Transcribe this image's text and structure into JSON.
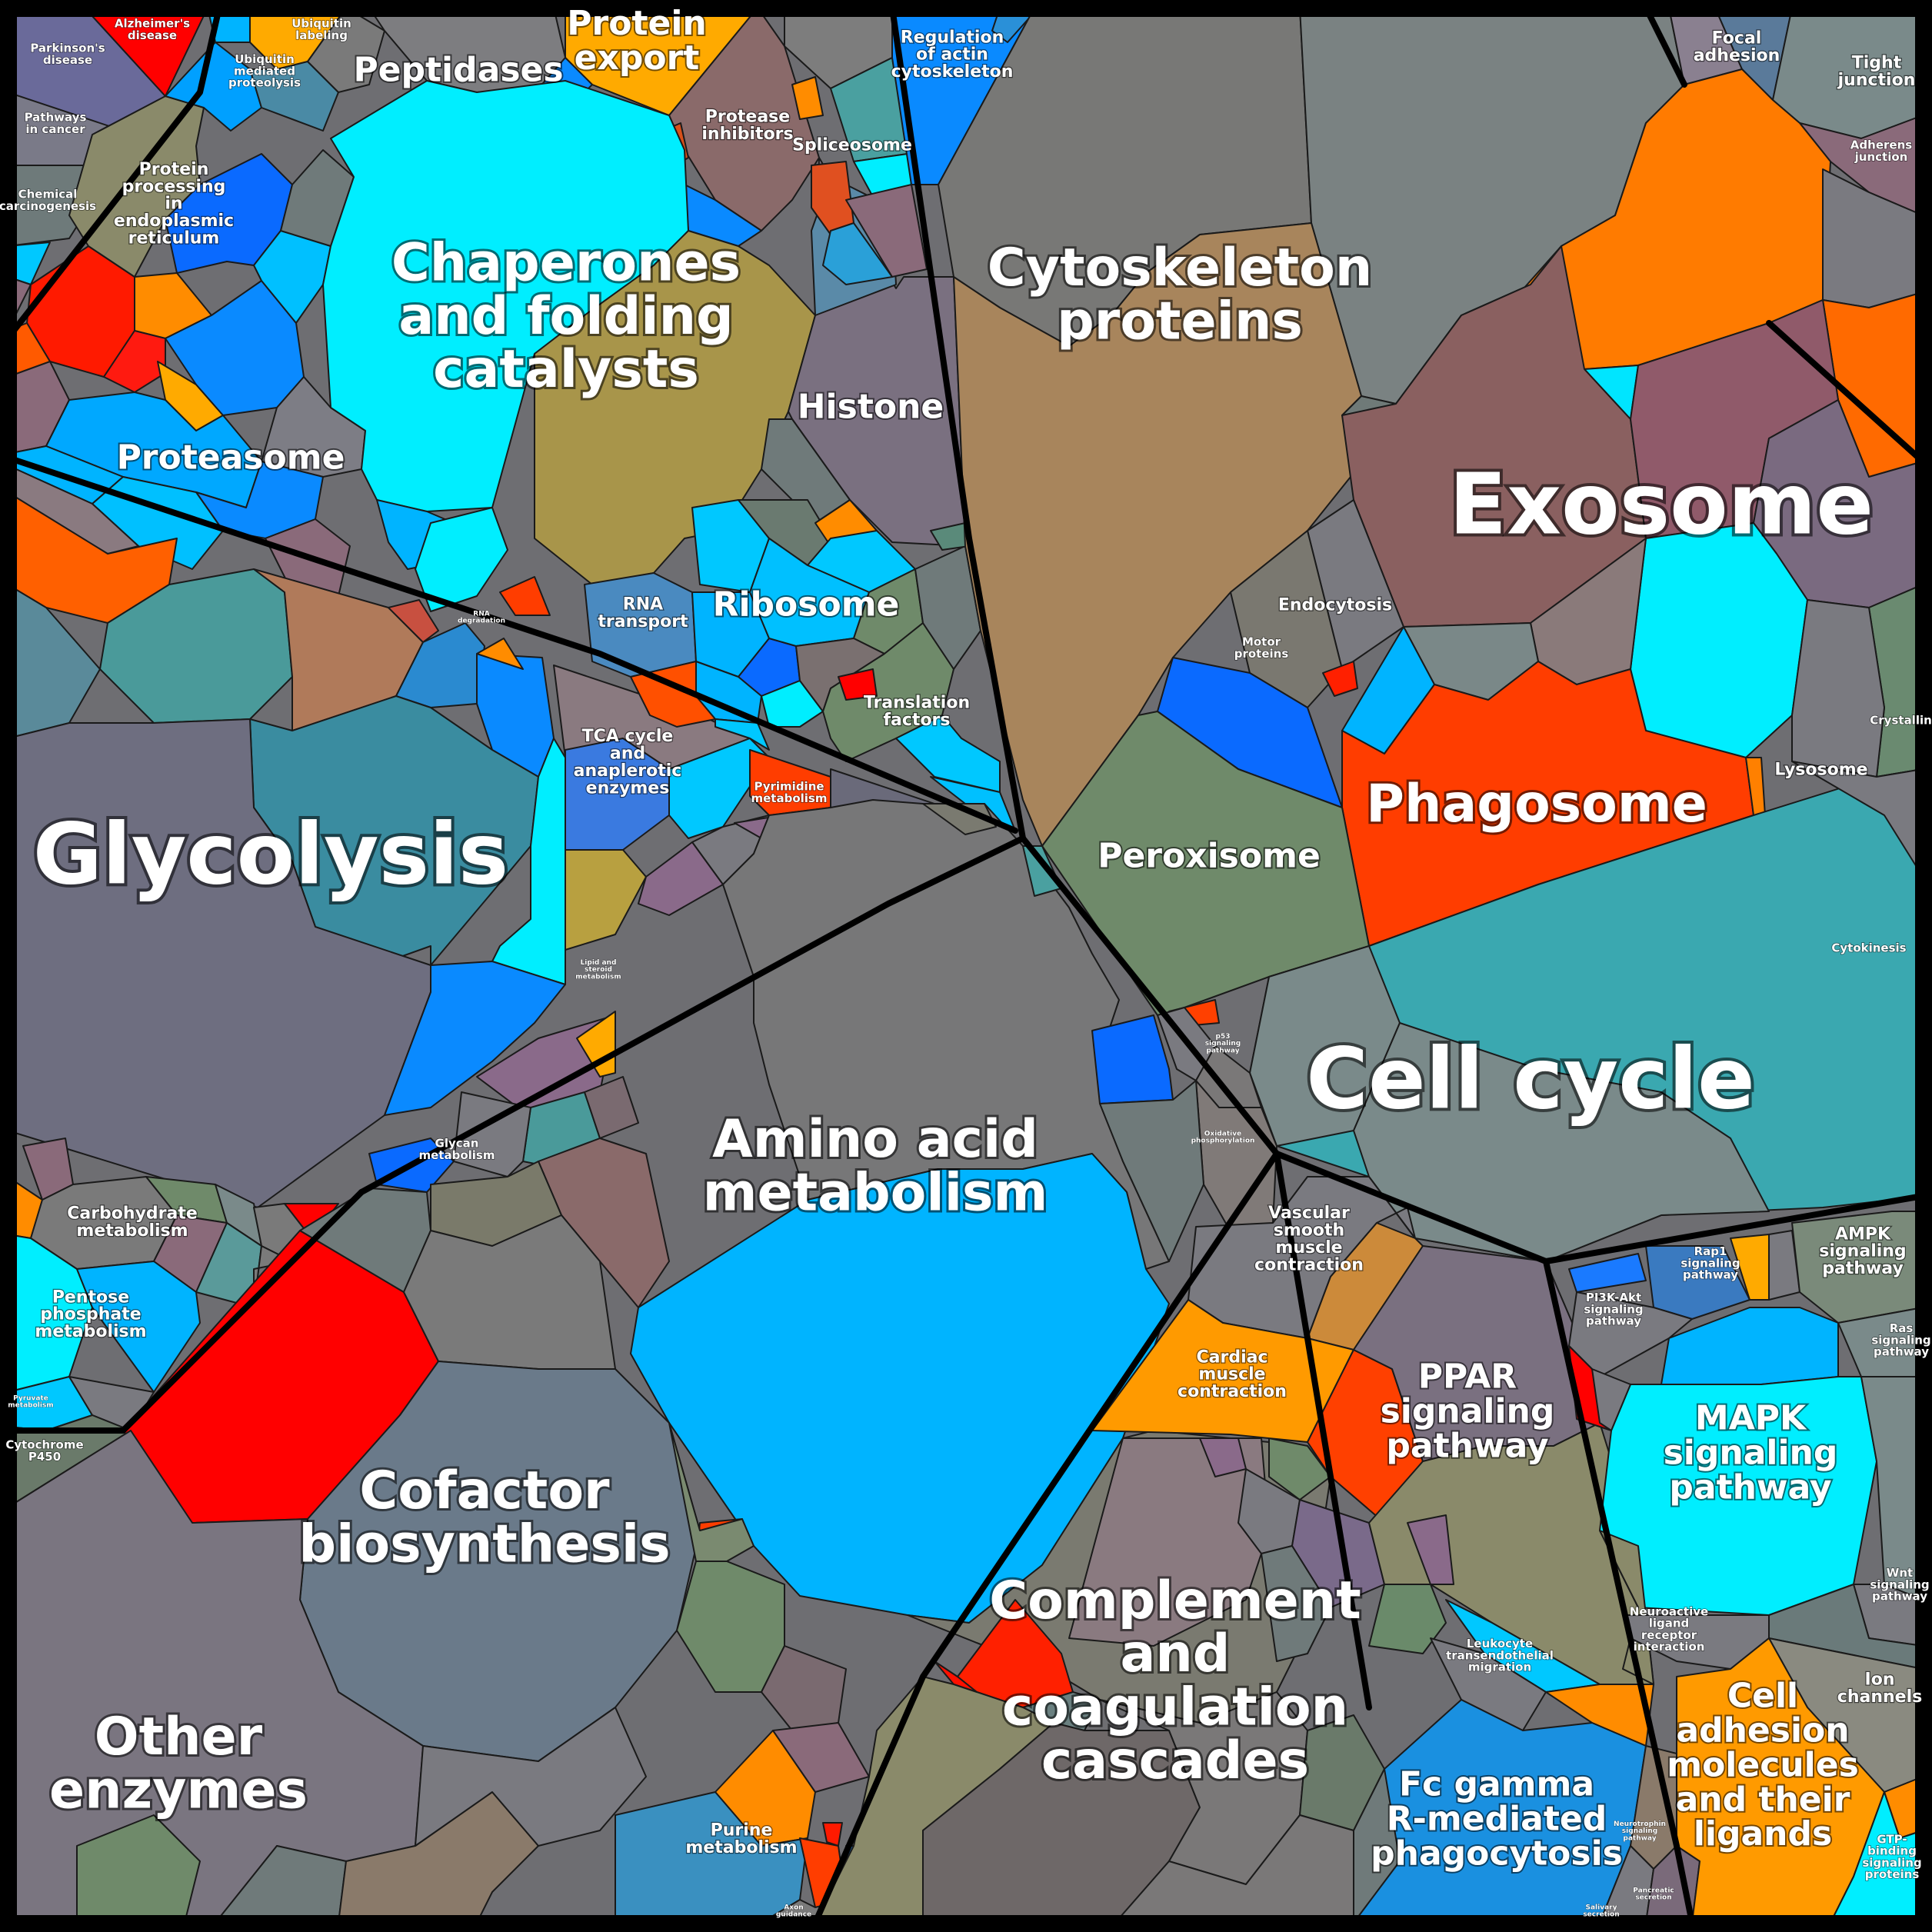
{
  "labels": {
    "alzheimers_disease": "Alzheimer's\ndisease",
    "parkinsons_disease": "Parkinson's\ndisease",
    "pathways_in_cancer": "Pathways\nin cancer",
    "chemical_carcinogenesis": "Chemical\ncarcinogenesis",
    "ubiquitin_labeling": "Ubiquitin\nlabeling",
    "ubiquitin_mediated_proteolysis": "Ubiquitin\nmediated\nproteolysis",
    "peptidases": "Peptidases",
    "protein_export": "Protein\nexport",
    "protease_inhibitors": "Protease\ninhibitors",
    "spliceosome": "Spliceosome",
    "regulation_of_actin_cytoskeleton": "Regulation\nof actin\ncytoskeleton",
    "protein_processing_er": "Protein\nprocessing\nin\nendoplasmic\nreticulum",
    "chaperones": "Chaperones\nand folding\ncatalysts",
    "proteasome": "Proteasome",
    "histone": "Histone",
    "cytoskeleton_proteins": "Cytoskeleton\nproteins",
    "focal_adhesion": "Focal\nadhesion",
    "tight_junction": "Tight\njunction",
    "adherens_junction": "Adherens\njunction",
    "exosome": "Exosome",
    "rna_transport": "RNA\ntransport",
    "ribosome": "Ribosome",
    "translation_factors": "Translation\nfactors",
    "rna_degradation": "RNA\ndegradation",
    "endocytosis": "Endocytosis",
    "motor_proteins": "Motor\nproteins",
    "phagosome": "Phagosome",
    "lysosome": "Lysosome",
    "crystallins": "Crystallins",
    "glycolysis": "Glycolysis",
    "tca_cycle": "TCA cycle\nand\nanaplerotic\nenzymes",
    "pyrimidine_metabolism": "Pyrimidine\nmetabolism",
    "peroxisome": "Peroxisome",
    "cytokinesis": "Cytokinesis",
    "cell_cycle": "Cell cycle",
    "lipid_steroid_metabolism": "Lipid and\nsteroid\nmetabolism",
    "p53_signaling": "p53\nsignaling\npathway",
    "oxidative_phosphorylation": "Oxidative\nphosphorylation",
    "glycan_metabolism": "Glycan\nmetabolism",
    "amino_acid_metabolism": "Amino acid\nmetabolism",
    "carbohydrate_metabolism": "Carbohydrate\nmetabolism",
    "pentose_phosphate_metabolism": "Pentose\nphosphate\nmetabolism",
    "pyruvate_metabolism": "Pyruvate\nmetabolism",
    "cytochrome_p450": "Cytochrome\nP450",
    "vascular_smooth_muscle": "Vascular\nsmooth\nmuscle\ncontraction",
    "ampk_signaling": "AMPK\nsignaling\npathway",
    "rap1_signaling": "Rap1\nsignaling\npathway",
    "pi3k_akt_signaling": "PI3K-Akt\nsignaling\npathway",
    "ras_signaling": "Ras\nsignaling\npathway",
    "cardiac_muscle_contraction": "Cardiac\nmuscle\ncontraction",
    "ppar_signaling": "PPAR\nsignaling\npathway",
    "mapk_signaling": "MAPK\nsignaling\npathway",
    "cofactor_biosynthesis": "Cofactor\nbiosynthesis",
    "wnt_signaling": "Wnt\nsignaling\npathway",
    "neuroactive_ligand": "Neuroactive\nligand\nreceptor\ninteraction",
    "leukocyte_migration": "Leukocyte\ntransendothelial\nmigration",
    "complement_coagulation": "Complement\nand\ncoagulation\ncascades",
    "ion_channels": "Ion\nchannels",
    "other_enzymes": "Other\nenzymes",
    "purine_metabolism": "Purine\nmetabolism",
    "cell_adhesion_molecules": "Cell\nadhesion\nmolecules\nand their\nligands",
    "fc_gamma_phagocytosis": "Fc gamma\nR-mediated\nphagocytosis",
    "neurotrophin_signaling": "Neurotrophin\nsignaling\npathway",
    "gtp_binding_proteins": "GTP-\nbinding\nsignaling\nproteins",
    "axon_guidance": "Axon\nguidance",
    "salivary_secretion": "Salivary\nsecretion",
    "pancreatic_secretion": "Pancreatic\nsecretion"
  },
  "colors": {
    "background": "#000000",
    "label_text": "#ffffff",
    "cyan": "#00eeff",
    "sky_blue": "#00b4ff",
    "azure": "#0a8aff",
    "royal_blue": "#0066ff",
    "steel_blue": "#3a8fc8",
    "teal": "#3e9aa5",
    "orange": "#ff7b00",
    "amber": "#ffaa00",
    "red": "#ff0000",
    "red_orange": "#ff3d00",
    "gray": "#777777",
    "slate": "#6a7a8a",
    "mauve": "#8a6a7a",
    "olive": "#a8954a",
    "tan": "#a8855c",
    "green_gray": "#6f8a6a",
    "purple_gray": "#7a6a8a"
  }
}
